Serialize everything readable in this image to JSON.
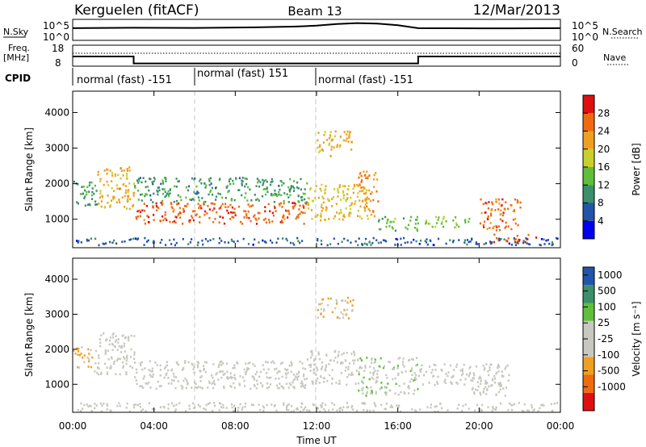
{
  "header": {
    "radar": "Kerguelen (fitACF)",
    "beam": "Beam 13",
    "date": "12/Mar/2013"
  },
  "top_panels": {
    "nsky_label": "N.Sky",
    "nsky_ticks": [
      "10^5",
      "10^0"
    ],
    "nsearch_label": "N.Search",
    "nsearch_ticks": [
      "10^5",
      "10^0"
    ],
    "freq_label": "Freq.",
    "freq_unit": "[MHz]",
    "freq_ticks": [
      "18",
      "8"
    ],
    "nave_label": "Nave",
    "nave_ticks": [
      "60",
      "0"
    ],
    "cpid_label": "CPID",
    "cpid_segments": [
      {
        "label": "normal (fast) -151",
        "start_hour": 0
      },
      {
        "label": "normal (fast) 151",
        "start_hour": 6
      },
      {
        "label": "normal (fast) -151",
        "start_hour": 12
      }
    ],
    "nsky_series": [
      [
        0,
        0.58
      ],
      [
        3,
        0.6
      ],
      [
        6,
        0.59
      ],
      [
        9,
        0.62
      ],
      [
        11,
        0.66
      ],
      [
        12,
        0.7
      ],
      [
        13,
        0.78
      ],
      [
        14,
        0.82
      ],
      [
        15,
        0.8
      ],
      [
        16,
        0.72
      ],
      [
        17,
        0.58
      ],
      [
        20,
        0.57
      ],
      [
        24,
        0.58
      ]
    ],
    "freq_series": [
      [
        0,
        12.6
      ],
      [
        3,
        12.6
      ],
      [
        3.01,
        9.3
      ],
      [
        17,
        9.3
      ],
      [
        17.01,
        12.6
      ],
      [
        24,
        12.6
      ]
    ],
    "freq_step": [
      [
        0,
        12.6
      ],
      [
        3,
        9.3
      ],
      [
        17,
        12.6
      ],
      [
        24,
        12.6
      ]
    ]
  },
  "chart_data": [
    {
      "type": "heatmap",
      "title": "Power",
      "xlabel": "",
      "ylabel": "Slant Range [km]",
      "xlim": [
        0,
        24
      ],
      "ylim": [
        200,
        4600
      ],
      "x_ticks": [
        "00:00",
        "04:00",
        "08:00",
        "12:00",
        "16:00",
        "20:00",
        "00:00"
      ],
      "y_ticks": [
        1000,
        2000,
        3000,
        4000
      ],
      "colorbar": {
        "label": "Power [dB]",
        "ticks": [
          "4",
          "8",
          "12",
          "16",
          "20",
          "24",
          "28"
        ],
        "range": [
          0,
          30
        ]
      },
      "colors": [
        "#0000ee",
        "#2255aa",
        "#3b8f6a",
        "#5fbf3a",
        "#c8d12c",
        "#f0a020",
        "#f06a10",
        "#e01010"
      ],
      "blobs": [
        {
          "t0": 0.0,
          "t1": 1.2,
          "r0": 1400,
          "r1": 2100,
          "v": 10
        },
        {
          "t0": 1.2,
          "t1": 3.0,
          "r0": 1300,
          "r1": 2500,
          "v": 20
        },
        {
          "t0": 3.0,
          "t1": 11.5,
          "r0": 900,
          "r1": 1500,
          "v": 25
        },
        {
          "t0": 3.0,
          "t1": 11.5,
          "r0": 1500,
          "r1": 2200,
          "v": 10
        },
        {
          "t0": 11.5,
          "t1": 14.5,
          "r0": 1000,
          "r1": 2000,
          "v": 18
        },
        {
          "t0": 12.0,
          "t1": 13.8,
          "r0": 2800,
          "r1": 3500,
          "v": 20
        },
        {
          "t0": 14.0,
          "t1": 15.0,
          "r0": 1100,
          "r1": 2400,
          "v": 22
        },
        {
          "t0": 15.0,
          "t1": 17.0,
          "r0": 700,
          "r1": 1100,
          "v": 13
        },
        {
          "t0": 17.0,
          "t1": 19.5,
          "r0": 800,
          "r1": 1100,
          "v": 14
        },
        {
          "t0": 20.0,
          "t1": 22.0,
          "r0": 700,
          "r1": 1600,
          "v": 24
        },
        {
          "t0": 20.5,
          "t1": 23.0,
          "r0": 350,
          "r1": 600,
          "v": 26
        },
        {
          "t0": 0.0,
          "t1": 24.0,
          "r0": 300,
          "r1": 500,
          "v": 6
        }
      ]
    },
    {
      "type": "heatmap",
      "title": "Velocity",
      "xlabel": "Time UT",
      "ylabel": "Slant Range [km]",
      "xlim": [
        0,
        24
      ],
      "ylim": [
        200,
        4600
      ],
      "x_ticks": [
        "00:00",
        "04:00",
        "08:00",
        "12:00",
        "16:00",
        "20:00",
        "00:00"
      ],
      "y_ticks": [
        1000,
        2000,
        3000,
        4000
      ],
      "colorbar": {
        "label": "Velocity [m s⁻¹]",
        "ticks": [
          "1000",
          "500",
          "100",
          "25",
          "-25",
          "-100",
          "-500",
          "-1000"
        ],
        "range": [
          -1000,
          1000
        ]
      },
      "colors": [
        "#e01010",
        "#f06a10",
        "#f0a020",
        "#c8c8c0",
        "#c8c8c0",
        "#5fbf3a",
        "#3b8f6a",
        "#2255aa"
      ],
      "blobs": [
        {
          "t0": 0.0,
          "t1": 1.0,
          "r0": 1500,
          "r1": 2100,
          "v": -300
        },
        {
          "t0": 1.0,
          "t1": 3.0,
          "r0": 1300,
          "r1": 2500,
          "v": 0
        },
        {
          "t0": 3.0,
          "t1": 11.5,
          "r0": 900,
          "r1": 1700,
          "v": 0
        },
        {
          "t0": 11.5,
          "t1": 14.0,
          "r0": 1000,
          "r1": 2000,
          "v": 0
        },
        {
          "t0": 12.0,
          "t1": 13.8,
          "r0": 2900,
          "r1": 3500,
          "v": -300
        },
        {
          "t0": 14.0,
          "t1": 17.0,
          "r0": 700,
          "r1": 1800,
          "v": 150
        },
        {
          "t0": 17.0,
          "t1": 21.5,
          "r0": 1000,
          "r1": 1600,
          "v": 0
        },
        {
          "t0": 19.5,
          "t1": 21.5,
          "r0": 700,
          "r1": 1100,
          "v": 0
        },
        {
          "t0": 0.0,
          "t1": 24.0,
          "r0": 250,
          "r1": 500,
          "v": -60
        }
      ]
    }
  ]
}
